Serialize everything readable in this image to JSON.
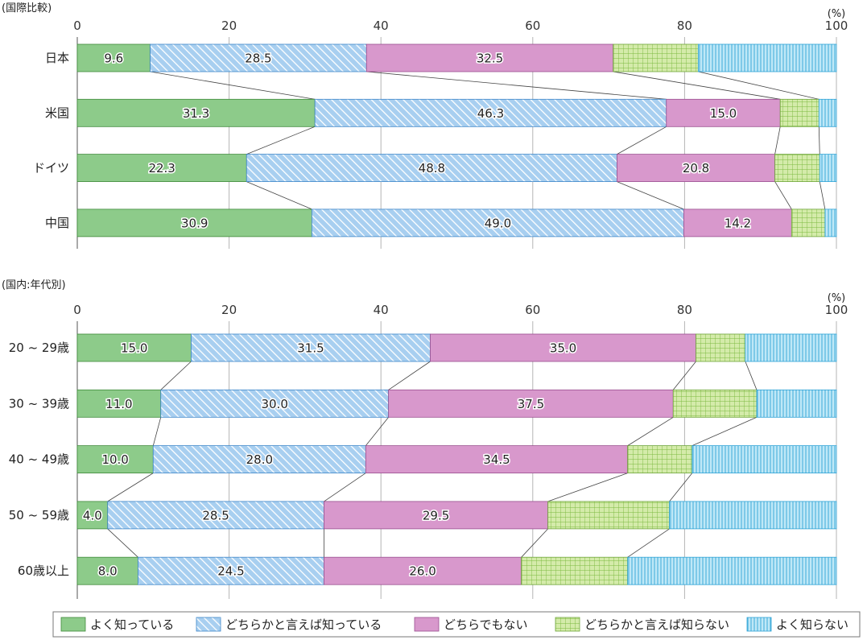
{
  "colors": {
    "good": "#8dcb8a",
    "good_stroke": "#3f8a3a",
    "somewhat": "#a8cff0",
    "somewhat_hatch": "#3d86c9",
    "somewhat_stroke": "#3d86c9",
    "neither": "#d898cc",
    "neither_stroke": "#9a4f8f",
    "somewhat_not": "#d4ebaa",
    "somewhat_not_grid": "#7ab93f",
    "somewhat_not_stroke": "#6ea53a",
    "notknow": "#bfe8f7",
    "notknow_line": "#2fa3d6",
    "notknow_stroke": "#2fa3d6",
    "grid": "#b5b5b5",
    "connector": "#444444"
  },
  "legend": {
    "items": [
      {
        "key": "good",
        "label": "よく知っている"
      },
      {
        "key": "somewhat",
        "label": "どちらかと言えば知っている"
      },
      {
        "key": "neither",
        "label": "どちらでもない"
      },
      {
        "key": "somewhat_not",
        "label": "どちらかと言えば知らない"
      },
      {
        "key": "notknow",
        "label": "よく知らない"
      }
    ]
  },
  "chart_data": [
    {
      "type": "bar",
      "orientation": "horizontal",
      "stacked": true,
      "title": "(国際比較)",
      "unit_label": "(%)",
      "xlim": [
        0,
        100
      ],
      "x_ticks": [
        "0",
        "20",
        "40",
        "60",
        "80",
        "100"
      ],
      "grid": true,
      "categories": [
        "日本",
        "米国",
        "ドイツ",
        "中国"
      ],
      "series": [
        {
          "name": "よく知っている",
          "key": "good",
          "values": [
            9.6,
            31.3,
            22.3,
            30.9
          ]
        },
        {
          "name": "どちらかと言えば知っている",
          "key": "somewhat",
          "values": [
            28.5,
            46.3,
            48.8,
            49.0
          ]
        },
        {
          "name": "どちらでもない",
          "key": "neither",
          "values": [
            32.5,
            15.0,
            20.8,
            14.2
          ]
        },
        {
          "name": "どちらかと言えば知らない",
          "key": "somewhat_not",
          "values": [
            11.2,
            5.1,
            5.9,
            4.4
          ]
        },
        {
          "name": "よく知らない",
          "key": "notknow",
          "values": [
            18.2,
            2.3,
            2.2,
            1.5
          ]
        }
      ],
      "labeled_series": [
        "good",
        "somewhat",
        "neither"
      ]
    },
    {
      "type": "bar",
      "orientation": "horizontal",
      "stacked": true,
      "title": "(国内:年代別)",
      "unit_label": "(%)",
      "xlim": [
        0,
        100
      ],
      "x_ticks": [
        "0",
        "20",
        "40",
        "60",
        "80",
        "100"
      ],
      "grid": true,
      "categories": [
        "20 ~ 29歳",
        "30 ~ 39歳",
        "40 ~ 49歳",
        "50 ~ 59歳",
        "60歳以上"
      ],
      "series": [
        {
          "name": "よく知っている",
          "key": "good",
          "values": [
            15.0,
            11.0,
            10.0,
            4.0,
            8.0
          ]
        },
        {
          "name": "どちらかと言えば知っている",
          "key": "somewhat",
          "values": [
            31.5,
            30.0,
            28.0,
            28.5,
            24.5
          ]
        },
        {
          "name": "どちらでもない",
          "key": "neither",
          "values": [
            35.0,
            37.5,
            34.5,
            29.5,
            26.0
          ]
        },
        {
          "name": "どちらかと言えば知らない",
          "key": "somewhat_not",
          "values": [
            6.5,
            11.0,
            8.5,
            16.0,
            14.0
          ]
        },
        {
          "name": "よく知らない",
          "key": "notknow",
          "values": [
            12.0,
            10.5,
            19.0,
            22.0,
            27.5
          ]
        }
      ],
      "labeled_series": [
        "good",
        "somewhat",
        "neither"
      ]
    }
  ]
}
